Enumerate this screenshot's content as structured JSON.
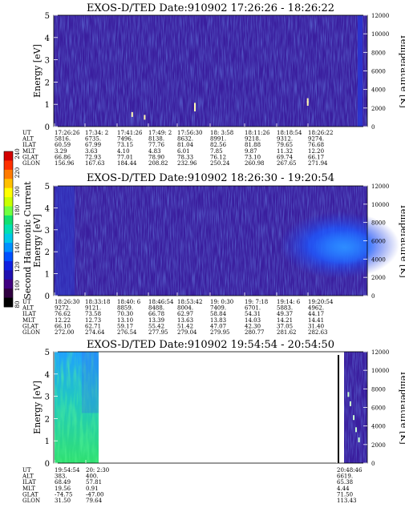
{
  "colors": {
    "background": "#3a1e9e",
    "axis": "#000000",
    "blank": "#ffffff"
  },
  "colorbar": {
    "label": "Second Harmonic Current",
    "ticks": [
      "240",
      "220",
      "200",
      "180",
      "160",
      "140",
      "120",
      "100",
      "80"
    ],
    "colors": [
      "#d40000",
      "#ff3000",
      "#ff7a00",
      "#ffc000",
      "#ffff00",
      "#c8ff00",
      "#70ff40",
      "#10e070",
      "#00e0b0",
      "#00c8e8",
      "#0090ff",
      "#0050ff",
      "#1020e0",
      "#2010b0",
      "#400080",
      "#300040",
      "#000000"
    ]
  },
  "chart_data": [
    {
      "type": "heatmap",
      "title": "EXOS-D/TED   Date:910902   17:26:26 - 18:26:22",
      "ylabel": "Energy [eV]",
      "y2label": "Temperature [K]",
      "ylim": [
        0,
        5
      ],
      "y_ticks": [
        "0",
        "1",
        "2",
        "3",
        "4",
        "5"
      ],
      "y2lim": [
        0,
        12000
      ],
      "y2_ticks": [
        "0",
        "2000",
        "4000",
        "6000",
        "8000",
        "10000",
        "12000"
      ],
      "row_labels": [
        "UT",
        "ALT",
        "ILAT",
        "MLT",
        "GLAT",
        "GLON"
      ],
      "columns": [
        [
          "17:26:26",
          "5816.",
          "60.59",
          "3.29",
          "66.86",
          "156.96"
        ],
        [
          "17:34: 2",
          "6735.",
          "67.99",
          "3.63",
          "72.93",
          "167.63"
        ],
        [
          "17:41:26",
          "7496.",
          "73.15",
          "4.10",
          "77.01",
          "184.44"
        ],
        [
          "17:49: 2",
          "8138.",
          "77.76",
          "4.83",
          "78.90",
          "208.82"
        ],
        [
          "17:56:30",
          "8632.",
          "81.04",
          "6.01",
          "78.33",
          "232.96"
        ],
        [
          "18: 3:58",
          "8991.",
          "82.56",
          "7.85",
          "76.12",
          "250.24"
        ],
        [
          "18:11:26",
          "9218.",
          "81.88",
          "9.87",
          "73.10",
          "260.98"
        ],
        [
          "18:18:54",
          "9312.",
          "79.65",
          "11.32",
          "69.74",
          "267.65"
        ],
        [
          "18:26:22",
          "9274.",
          "76.68",
          "12.20",
          "66.17",
          "271.94"
        ]
      ],
      "temperature_points": [
        [
          0.25,
          1300
        ],
        [
          0.29,
          1000
        ],
        [
          0.45,
          2300
        ],
        [
          0.45,
          1900
        ],
        [
          0.81,
          2800
        ],
        [
          0.81,
          2500
        ]
      ]
    },
    {
      "type": "heatmap",
      "title": "EXOS-D/TED   Date:910902   18:26:30 - 19:20:54",
      "ylabel": "Energy [eV]",
      "y2label": "Temperature [K]",
      "ylim": [
        0,
        5
      ],
      "y_ticks": [
        "0",
        "1",
        "2",
        "3",
        "4",
        "5"
      ],
      "y2lim": [
        0,
        12000
      ],
      "y2_ticks": [
        "0",
        "2000",
        "4000",
        "6000",
        "8000",
        "10000",
        "12000"
      ],
      "row_labels": [
        "UT",
        "ALT",
        "ILAT",
        "MLT",
        "GLAT",
        "GLON"
      ],
      "columns": [
        [
          "18:26:30",
          "9272.",
          "76.62",
          "12.22",
          "66.10",
          "272.00"
        ],
        [
          "18:33:18",
          "9121.",
          "73.58",
          "12.73",
          "62.71",
          "274.64"
        ],
        [
          "18:40: 6",
          "8859.",
          "70.30",
          "13.10",
          "59.17",
          "276.54"
        ],
        [
          "18:46:54",
          "8488.",
          "66.78",
          "13.39",
          "55.42",
          "277.95"
        ],
        [
          "18:53:42",
          "8004.",
          "62.97",
          "13.63",
          "51.42",
          "279.04"
        ],
        [
          "19: 0:30",
          "7409.",
          "58.84",
          "13.83",
          "47.07",
          "279.95"
        ],
        [
          "19: 7:18",
          "6701.",
          "54.31",
          "14.03",
          "42.30",
          "280.77"
        ],
        [
          "19:14: 6",
          "5883.",
          "49.37",
          "14.21",
          "37.05",
          "281.62"
        ],
        [
          "19:20:54",
          "4962.",
          "44.17",
          "14.41",
          "31.40",
          "282.63"
        ]
      ],
      "temperature_points": []
    },
    {
      "type": "heatmap",
      "title": "EXOS-D/TED   Date:910902   19:54:54 - 20:54:50",
      "ylabel": "Energy [eV]",
      "y2label": "Temperature [K]",
      "ylim": [
        0,
        5
      ],
      "y_ticks": [
        "0",
        "1",
        "2",
        "3",
        "4",
        "5"
      ],
      "y2lim": [
        0,
        12000
      ],
      "y2_ticks": [
        "0",
        "2000",
        "4000",
        "6000",
        "8000",
        "10000",
        "12000"
      ],
      "row_labels": [
        "UT",
        "ALT",
        "ILAT",
        "MLT",
        "GLAT",
        "GLON"
      ],
      "columns": [
        [
          "19:54:54",
          "383.",
          "68.49",
          "19.56",
          "-74.75",
          "31.50"
        ],
        [
          "20: 2:30",
          "400.",
          "57.81",
          "0.91",
          "-47.00",
          "79.64"
        ],
        [
          "20:48:46",
          "6619.",
          "65.38",
          "4.44",
          "71.50",
          "113.43"
        ]
      ],
      "temperature_points": [
        [
          0.12,
          7400
        ],
        [
          0.25,
          6400
        ],
        [
          0.45,
          4900
        ],
        [
          0.6,
          3600
        ],
        [
          0.78,
          2500
        ]
      ]
    }
  ]
}
